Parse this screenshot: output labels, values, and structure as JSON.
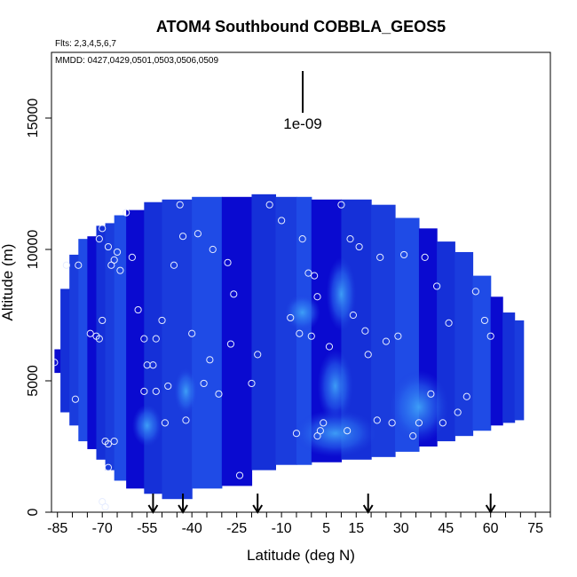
{
  "chart_data": {
    "type": "heatmap",
    "title": "ATOM4 Southbound COBBLA_GEOS5",
    "subtitle_flights": "Flts: 2,3,4,5,6,7",
    "subtitle_dates": "MMDD: 0427,0429,0501,0503,0506,0509",
    "xlabel": "Latitude (deg N)",
    "ylabel": "Altitude (m)",
    "xlim": [
      -87,
      80
    ],
    "ylim": [
      0,
      17500
    ],
    "x_ticks": [
      -85,
      -70,
      -55,
      -40,
      -25,
      -10,
      5,
      15,
      30,
      45,
      60,
      75
    ],
    "y_ticks": [
      0,
      5000,
      10000,
      15000
    ],
    "scale_label": "1e-09",
    "colors": {
      "low": "#0a0ad0",
      "mid": "#1f4be6",
      "high": "#3a9bf6",
      "points": "#e6ecff"
    },
    "profile_arrows_lat": [
      -53,
      -43,
      -18,
      19,
      60
    ],
    "columns": [
      {
        "lat": [
          -86,
          -84
        ],
        "alt": [
          5300,
          6200
        ]
      },
      {
        "lat": [
          -84,
          -81
        ],
        "alt": [
          3800,
          8500
        ]
      },
      {
        "lat": [
          -81,
          -78
        ],
        "alt": [
          3300,
          9800
        ]
      },
      {
        "lat": [
          -78,
          -75
        ],
        "alt": [
          2700,
          10400
        ]
      },
      {
        "lat": [
          -75,
          -72
        ],
        "alt": [
          2400,
          10500
        ]
      },
      {
        "lat": [
          -72,
          -69
        ],
        "alt": [
          2000,
          10900
        ]
      },
      {
        "lat": [
          -69,
          -66
        ],
        "alt": [
          1600,
          11000
        ]
      },
      {
        "lat": [
          -66,
          -62
        ],
        "alt": [
          1200,
          11300
        ]
      },
      {
        "lat": [
          -62,
          -56
        ],
        "alt": [
          900,
          11500
        ]
      },
      {
        "lat": [
          -56,
          -50
        ],
        "alt": [
          700,
          11800
        ]
      },
      {
        "lat": [
          -50,
          -40
        ],
        "alt": [
          500,
          11900
        ]
      },
      {
        "lat": [
          -40,
          -30
        ],
        "alt": [
          900,
          12000
        ]
      },
      {
        "lat": [
          -30,
          -20
        ],
        "alt": [
          1000,
          12000
        ]
      },
      {
        "lat": [
          -20,
          -12
        ],
        "alt": [
          1600,
          12100
        ]
      },
      {
        "lat": [
          -12,
          -5
        ],
        "alt": [
          1800,
          12000
        ]
      },
      {
        "lat": [
          -5,
          0
        ],
        "alt": [
          1800,
          12000
        ]
      },
      {
        "lat": [
          0,
          10
        ],
        "alt": [
          1900,
          11900
        ]
      },
      {
        "lat": [
          10,
          20
        ],
        "alt": [
          2000,
          11900
        ]
      },
      {
        "lat": [
          20,
          28
        ],
        "alt": [
          2100,
          11700
        ]
      },
      {
        "lat": [
          28,
          36
        ],
        "alt": [
          2300,
          11200
        ]
      },
      {
        "lat": [
          36,
          42
        ],
        "alt": [
          2500,
          10800
        ]
      },
      {
        "lat": [
          42,
          48
        ],
        "alt": [
          2700,
          10300
        ]
      },
      {
        "lat": [
          48,
          54
        ],
        "alt": [
          2900,
          9900
        ]
      },
      {
        "lat": [
          54,
          60
        ],
        "alt": [
          3100,
          9000
        ]
      },
      {
        "lat": [
          60,
          64
        ],
        "alt": [
          3300,
          8200
        ]
      },
      {
        "lat": [
          64,
          68
        ],
        "alt": [
          3400,
          7600
        ]
      },
      {
        "lat": [
          68,
          71
        ],
        "alt": [
          3500,
          7300
        ]
      }
    ],
    "enhancements": [
      {
        "lat": 8,
        "alt": 3000,
        "rx": 14,
        "ry": 900
      },
      {
        "lat": 8,
        "alt": 4800,
        "rx": 6,
        "ry": 1400
      },
      {
        "lat": 10,
        "alt": 8300,
        "rx": 5,
        "ry": 1400
      },
      {
        "lat": -3,
        "alt": 7600,
        "rx": 6,
        "ry": 700
      },
      {
        "lat": -42,
        "alt": 4600,
        "rx": 4,
        "ry": 900
      },
      {
        "lat": -55,
        "alt": 3300,
        "rx": 5,
        "ry": 800
      },
      {
        "lat": 36,
        "alt": 4000,
        "rx": 10,
        "ry": 1400
      }
    ],
    "points": [
      [
        -86,
        5700
      ],
      [
        -79,
        4300
      ],
      [
        -82,
        9400
      ],
      [
        -78,
        9400
      ],
      [
        -74,
        6800
      ],
      [
        -72,
        6700
      ],
      [
        -71,
        6600
      ],
      [
        -70,
        7300
      ],
      [
        -71,
        10400
      ],
      [
        -70,
        10800
      ],
      [
        -68,
        10100
      ],
      [
        -67,
        9400
      ],
      [
        -66,
        9600
      ],
      [
        -65,
        9900
      ],
      [
        -64,
        9200
      ],
      [
        -62,
        11400
      ],
      [
        -60,
        9700
      ],
      [
        -58,
        7700
      ],
      [
        -56,
        6600
      ],
      [
        -56,
        4600
      ],
      [
        -55,
        5600
      ],
      [
        -53,
        5600
      ],
      [
        -52,
        4600
      ],
      [
        -52,
        6600
      ],
      [
        -50,
        7300
      ],
      [
        -49,
        3400
      ],
      [
        -48,
        4800
      ],
      [
        -46,
        9400
      ],
      [
        -44,
        11700
      ],
      [
        -43,
        10500
      ],
      [
        -42,
        3500
      ],
      [
        -40,
        6800
      ],
      [
        -38,
        10600
      ],
      [
        -36,
        4900
      ],
      [
        -34,
        5800
      ],
      [
        -33,
        10000
      ],
      [
        -31,
        4500
      ],
      [
        -28,
        9500
      ],
      [
        -27,
        6400
      ],
      [
        -26,
        8300
      ],
      [
        -24,
        1400
      ],
      [
        -20,
        4900
      ],
      [
        -18,
        6000
      ],
      [
        -14,
        11700
      ],
      [
        -10,
        11100
      ],
      [
        -7,
        7400
      ],
      [
        -5,
        3000
      ],
      [
        -4,
        6800
      ],
      [
        -3,
        10400
      ],
      [
        -1,
        9100
      ],
      [
        0,
        6700
      ],
      [
        1,
        9000
      ],
      [
        2,
        2900
      ],
      [
        2,
        8200
      ],
      [
        3,
        3100
      ],
      [
        4,
        3400
      ],
      [
        6,
        6300
      ],
      [
        10,
        11700
      ],
      [
        12,
        3100
      ],
      [
        13,
        10400
      ],
      [
        14,
        7500
      ],
      [
        16,
        10100
      ],
      [
        18,
        6900
      ],
      [
        19,
        6000
      ],
      [
        22,
        3500
      ],
      [
        23,
        9700
      ],
      [
        25,
        6500
      ],
      [
        27,
        3400
      ],
      [
        29,
        6700
      ],
      [
        31,
        9800
      ],
      [
        34,
        2900
      ],
      [
        36,
        3400
      ],
      [
        38,
        9700
      ],
      [
        40,
        4500
      ],
      [
        42,
        8600
      ],
      [
        44,
        3400
      ],
      [
        46,
        7200
      ],
      [
        49,
        3800
      ],
      [
        52,
        4400
      ],
      [
        55,
        8400
      ],
      [
        58,
        7300
      ],
      [
        60,
        6700
      ],
      [
        -69,
        2700
      ],
      [
        -68,
        2600
      ],
      [
        -66,
        2700
      ],
      [
        -68,
        1700
      ],
      [
        -70,
        400
      ],
      [
        -69,
        200
      ]
    ]
  }
}
